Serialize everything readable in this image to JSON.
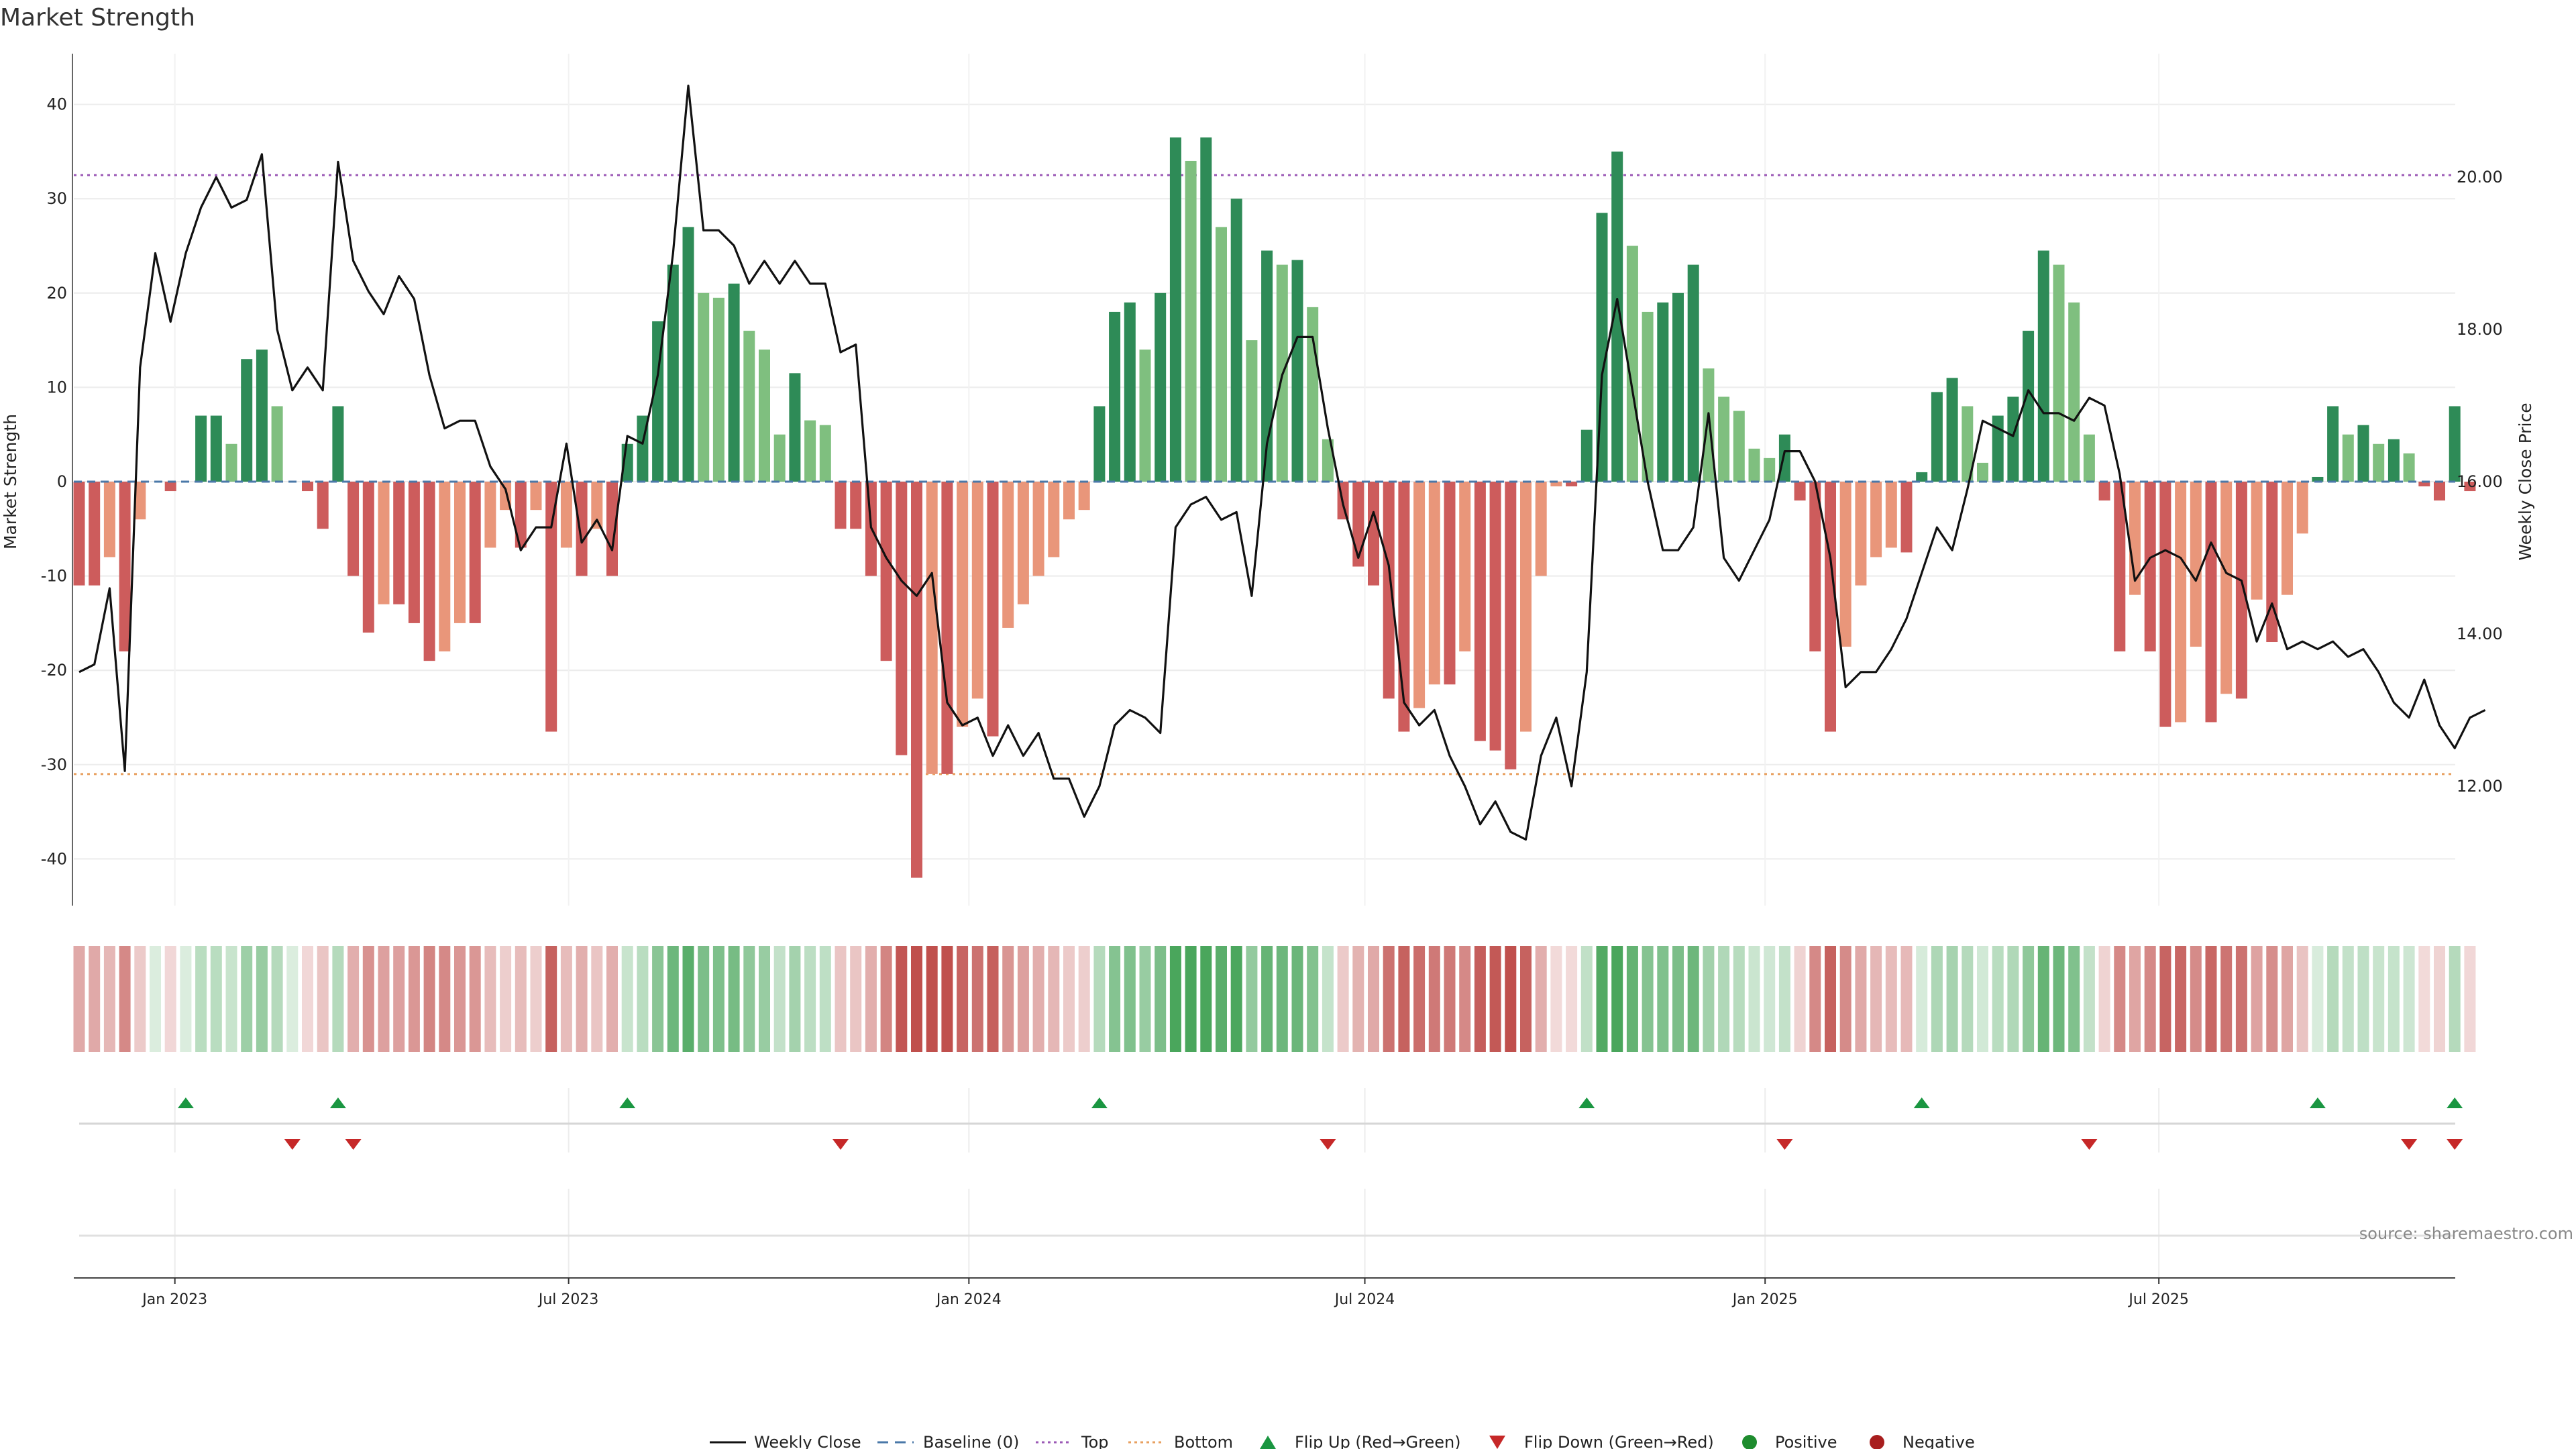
{
  "chart_data": {
    "type": "bar",
    "title": "Market Strength",
    "ylabel": "Market Strength",
    "y2label": "Weekly Close Price",
    "ylim": [
      -45,
      45
    ],
    "y2lim": [
      10.7,
      21.7
    ],
    "y_ticks": [
      -40,
      -30,
      -20,
      -10,
      0,
      10,
      20,
      30,
      40
    ],
    "y2_ticks": [
      "12.00",
      "14.00",
      "16.00",
      "18.00",
      "20.00"
    ],
    "x_start": "2022-11-18",
    "x_tick_labels": [
      {
        "date": "2023-01-01",
        "label": "Jan 2023"
      },
      {
        "date": "2023-07-01",
        "label": "Jul 2023"
      },
      {
        "date": "2024-01-01",
        "label": "Jan 2024"
      },
      {
        "date": "2024-07-01",
        "label": "Jul 2024"
      },
      {
        "date": "2025-01-01",
        "label": "Jan 2025"
      },
      {
        "date": "2025-07-01",
        "label": "Jul 2025"
      }
    ],
    "top": 32.5,
    "bottom": -31,
    "strength": [
      -11,
      -11,
      -8,
      -18,
      -4,
      0,
      -1,
      0,
      7,
      7,
      4,
      13,
      14,
      8,
      0,
      -1,
      -5,
      8,
      -10,
      -16,
      -13,
      -13,
      -15,
      -19,
      -18,
      -15,
      -15,
      -7,
      -3,
      -7,
      -3,
      -26.5,
      -7,
      -10,
      -5,
      -10,
      4,
      7,
      17,
      23,
      27,
      20,
      19.5,
      21,
      16,
      14,
      5,
      11.5,
      6.5,
      6,
      -5,
      -5,
      -10,
      -19,
      -29,
      -42,
      -31,
      -31,
      -26,
      -23,
      -27,
      -15.5,
      -13,
      -10,
      -8,
      -4,
      -3,
      8,
      18,
      19,
      14,
      20,
      36.5,
      34,
      36.5,
      27,
      30,
      15,
      24.5,
      23,
      23.5,
      18.5,
      4.5,
      -4,
      -9,
      -11,
      -23,
      -26.5,
      -24,
      -21.5,
      -21.5,
      -18,
      -27.5,
      -28.5,
      -30.5,
      -26.5,
      -10,
      -0.5,
      -0.5,
      5.5,
      28.5,
      35,
      25,
      18,
      19,
      20,
      23,
      12,
      9,
      7.5,
      3.5,
      2.5,
      5,
      -2,
      -18,
      -26.5,
      -17.5,
      -11,
      -8,
      -7,
      -7.5,
      1,
      9.5,
      11,
      8,
      2,
      7,
      9,
      16,
      24.5,
      23,
      19,
      5,
      -2,
      -18,
      -12,
      -18,
      -26,
      -25.5,
      -17.5,
      -25.5,
      -22.5,
      -23,
      -12.5,
      -17,
      -12,
      -5.5,
      0.5,
      8,
      5,
      6,
      4,
      4.5,
      3,
      -0.5,
      -2,
      8,
      -1
    ],
    "price": [
      13.5,
      13.6,
      14.6,
      12.2,
      17.5,
      19.0,
      18.1,
      19.0,
      19.6,
      20.0,
      19.6,
      19.7,
      20.3,
      18.0,
      17.2,
      17.5,
      17.2,
      20.2,
      18.9,
      18.5,
      18.2,
      18.7,
      18.4,
      17.4,
      16.7,
      16.8,
      16.8,
      16.2,
      15.9,
      15.1,
      15.4,
      15.4,
      16.5,
      15.2,
      15.5,
      15.1,
      16.6,
      16.5,
      17.4,
      19.0,
      21.2,
      19.3,
      19.3,
      19.1,
      18.6,
      18.9,
      18.6,
      18.9,
      18.6,
      18.6,
      17.7,
      17.8,
      15.4,
      15.0,
      14.7,
      14.5,
      14.8,
      13.1,
      12.8,
      12.9,
      12.4,
      12.8,
      12.4,
      12.7,
      12.1,
      12.1,
      11.6,
      12.0,
      12.8,
      13.0,
      12.9,
      12.7,
      15.4,
      15.7,
      15.8,
      15.5,
      15.6,
      14.5,
      16.5,
      17.4,
      17.9,
      17.9,
      16.7,
      15.7,
      15.0,
      15.6,
      14.9,
      13.1,
      12.8,
      13.0,
      12.4,
      12.0,
      11.5,
      11.8,
      11.4,
      11.3,
      12.4,
      12.9,
      12.0,
      13.5,
      17.4,
      18.4,
      17.2,
      16.0,
      15.1,
      15.1,
      15.4,
      16.9,
      15.0,
      14.7,
      15.1,
      15.5,
      16.4,
      16.4,
      16.0,
      15.0,
      13.3,
      13.5,
      13.5,
      13.8,
      14.2,
      14.8,
      15.4,
      15.1,
      15.9,
      16.8,
      16.7,
      16.6,
      17.2,
      16.9,
      16.9,
      16.8,
      17.1,
      17.0,
      16.1,
      14.7,
      15.0,
      15.1,
      15.0,
      14.7,
      15.2,
      14.8,
      14.7,
      13.9,
      14.4,
      13.8,
      13.9,
      13.8,
      13.9,
      13.7,
      13.8,
      13.5,
      13.1,
      12.9,
      13.4,
      12.8,
      12.5,
      12.9,
      13.0
    ],
    "flip_up_weeks": [
      7,
      17,
      36,
      67,
      99,
      121,
      147,
      156
    ],
    "flip_down_weeks": [
      14,
      18,
      50,
      82,
      112,
      132,
      153,
      156
    ],
    "source": "source: sharemaestro.com",
    "legend": [
      {
        "key": "weekly_close",
        "label": "Weekly Close"
      },
      {
        "key": "baseline",
        "label": "Baseline (0)"
      },
      {
        "key": "top",
        "label": "Top"
      },
      {
        "key": "bottom",
        "label": "Bottom"
      },
      {
        "key": "flip_up",
        "label": "Flip Up (Red→Green)"
      },
      {
        "key": "flip_down",
        "label": "Flip Down (Green→Red)"
      },
      {
        "key": "positive",
        "label": "Positive"
      },
      {
        "key": "negative",
        "label": "Negative"
      }
    ],
    "colors": {
      "pos_dark": "#2e8b57",
      "pos_light": "#7fbf7f",
      "neg_dark": "#cd5c5c",
      "neg_light": "#e9967a",
      "close_line": "#111111",
      "baseline": "#4a78a8",
      "top_line": "#9b59b6",
      "bottom_line": "#e8a060",
      "flip_up": "#1a9641",
      "flip_down": "#c62828",
      "positive_dot": "#1e8c2e",
      "negative_dot": "#a81e1e"
    }
  }
}
